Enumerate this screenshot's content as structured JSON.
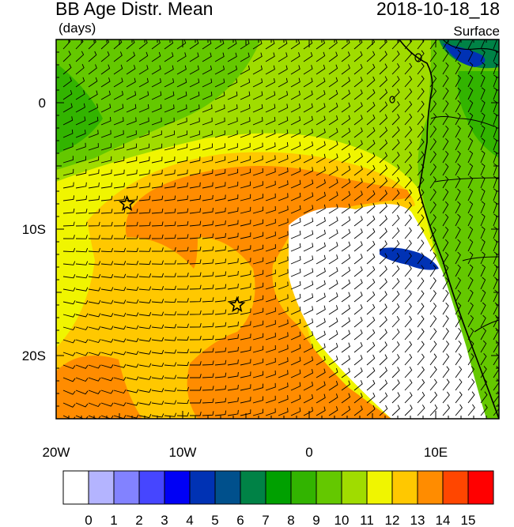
{
  "title": "BB Age Distr. Mean",
  "units": "(days)",
  "datetime": "2018-10-18_18",
  "level": "Surface",
  "map": {
    "lon_range": [
      -20,
      15
    ],
    "lat_range": [
      -25,
      5
    ],
    "lon_ticks": [
      {
        "value": -20,
        "label": "20W"
      },
      {
        "value": -10,
        "label": "10W"
      },
      {
        "value": 0,
        "label": "0"
      },
      {
        "value": 10,
        "label": "10E"
      }
    ],
    "lat_ticks": [
      {
        "value": 0,
        "label": "0"
      },
      {
        "value": -10,
        "label": "10S"
      },
      {
        "value": -20,
        "label": "20S"
      }
    ],
    "markers": [
      {
        "type": "star",
        "lon": -14.4,
        "lat": -8.0
      },
      {
        "type": "star",
        "lon": -5.7,
        "lat": -16.0
      }
    ]
  },
  "colorbar": {
    "labels": [
      "0",
      "1",
      "2",
      "3",
      "4",
      "5",
      "6",
      "7",
      "8",
      "9",
      "10",
      "11",
      "12",
      "13",
      "14",
      "15"
    ],
    "colors": [
      "#ffffff",
      "#b4b4ff",
      "#8282ff",
      "#4646ff",
      "#0000f5",
      "#0032b4",
      "#00508c",
      "#008246",
      "#00a000",
      "#32b400",
      "#64c800",
      "#a0dc00",
      "#f0f500",
      "#ffc800",
      "#ff8c00",
      "#ff4600",
      "#ff0000"
    ]
  }
}
